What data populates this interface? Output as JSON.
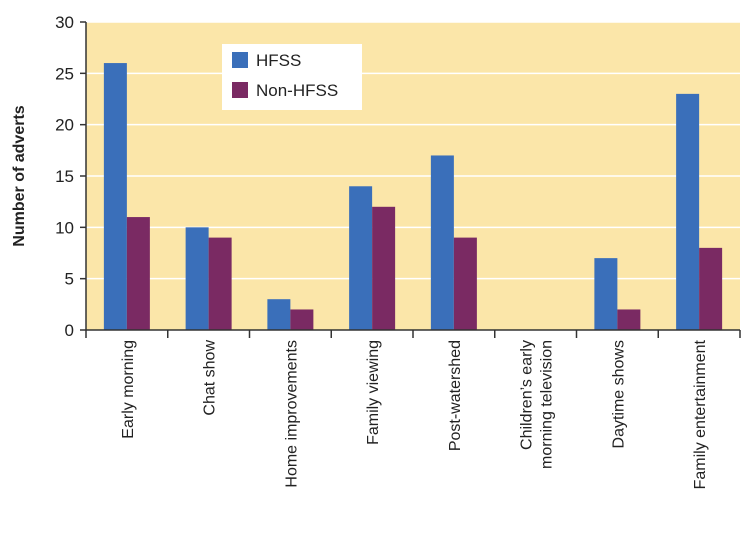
{
  "colors": {
    "background": "#fbe6a9",
    "grid": "#ffffff",
    "axis": "#333333",
    "hfss": "#3a6fba",
    "non_hfss": "#7a2a63"
  },
  "chart_data": {
    "type": "bar",
    "title": "",
    "xlabel": "",
    "ylabel": "Number of adverts",
    "ylim": [
      0,
      30
    ],
    "yticks": [
      0,
      5,
      10,
      15,
      20,
      25,
      30
    ],
    "grid": true,
    "legend_position": "top-left",
    "categories": [
      "Early morning",
      "Chat show",
      "Home improvements",
      "Family viewing",
      "Post-watershed",
      "Children's early morning television",
      "Daytime shows",
      "Family entertainment"
    ],
    "category_lines": [
      [
        "Early morning"
      ],
      [
        "Chat show"
      ],
      [
        "Home improvements"
      ],
      [
        "Family viewing"
      ],
      [
        "Post-watershed"
      ],
      [
        "Children’s early",
        "morning television"
      ],
      [
        "Daytime shows"
      ],
      [
        "Family entertainment"
      ]
    ],
    "series": [
      {
        "name": "HFSS",
        "color": "#3a6fba",
        "values": [
          26,
          10,
          3,
          14,
          17,
          0,
          7,
          23
        ]
      },
      {
        "name": "Non-HFSS",
        "color": "#7a2a63",
        "values": [
          11,
          9,
          2,
          12,
          9,
          0,
          2,
          8
        ]
      }
    ]
  }
}
